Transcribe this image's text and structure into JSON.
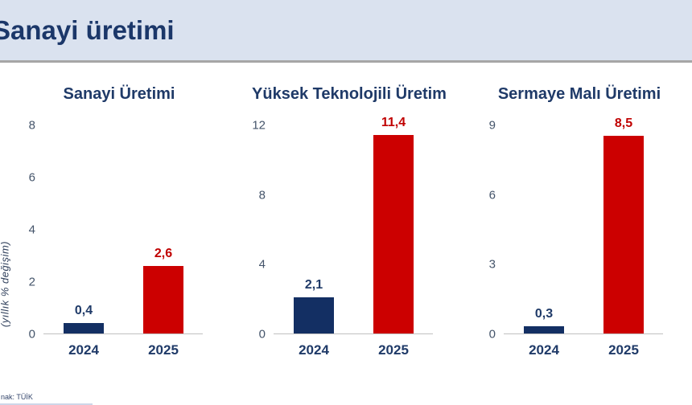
{
  "header": {
    "title": "Sanayi üretimi"
  },
  "source_note": "nak: TÜİK",
  "colors": {
    "header_bg": "#dae2ef",
    "header_title_text": "#1b3769",
    "chart_title_text": "#1f3a68",
    "tick_text": "#44546a",
    "year_text": "#1f3a68",
    "axis_line": "#c0c0c0",
    "bar_2024": "#132f63",
    "bar_2025": "#cc0000",
    "label_2024": "#1f3a68",
    "label_2025": "#c00000"
  },
  "chart_data": [
    {
      "type": "bar",
      "title": "Sanayi Üretimi",
      "ylabel": "(yıllık % değişim)",
      "xlabel": "",
      "categories": [
        "2024",
        "2025"
      ],
      "values": [
        0.4,
        2.6
      ],
      "value_labels": [
        "0,4",
        "2,6"
      ],
      "bar_colors": [
        "#132f63",
        "#cc0000"
      ],
      "label_colors": [
        "#1f3a68",
        "#c00000"
      ],
      "ylim": [
        0,
        8
      ],
      "yticks": [
        0,
        2,
        4,
        6,
        8
      ],
      "grid": false,
      "legend": false
    },
    {
      "type": "bar",
      "title": "Yüksek Teknolojili Üretim",
      "ylabel": "",
      "xlabel": "",
      "categories": [
        "2024",
        "2025"
      ],
      "values": [
        2.1,
        11.4
      ],
      "value_labels": [
        "2,1",
        "11,4"
      ],
      "bar_colors": [
        "#132f63",
        "#cc0000"
      ],
      "label_colors": [
        "#1f3a68",
        "#c00000"
      ],
      "ylim": [
        0,
        12
      ],
      "yticks": [
        0,
        4,
        8,
        12
      ],
      "grid": false,
      "legend": false
    },
    {
      "type": "bar",
      "title": "Sermaye Malı Üretimi",
      "ylabel": "",
      "xlabel": "",
      "categories": [
        "2024",
        "2025"
      ],
      "values": [
        0.3,
        8.5
      ],
      "value_labels": [
        "0,3",
        "8,5"
      ],
      "bar_colors": [
        "#132f63",
        "#cc0000"
      ],
      "label_colors": [
        "#1f3a68",
        "#c00000"
      ],
      "ylim": [
        0,
        9
      ],
      "yticks": [
        0,
        3,
        6,
        9
      ],
      "grid": false,
      "legend": false
    }
  ]
}
